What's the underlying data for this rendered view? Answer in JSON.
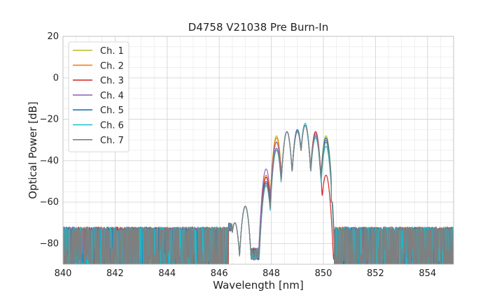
{
  "chart_data": {
    "type": "line",
    "title": "D4758 V21038 Pre Burn-In",
    "xlabel": "Wavelength [nm]",
    "ylabel": "Optical Power [dB]",
    "xlim": [
      840,
      855
    ],
    "ylim": [
      -90,
      20
    ],
    "xticks": [
      840,
      842,
      844,
      846,
      848,
      850,
      852,
      854
    ],
    "yticks": [
      20,
      0,
      -20,
      -40,
      -60,
      -80
    ],
    "grid": true,
    "legend_position": "top-left",
    "series": [
      {
        "name": "Ch. 1",
        "color": "#bcbd22",
        "peaks": [
          [
            846.6,
            -70
          ],
          [
            847.0,
            -62
          ],
          [
            847.8,
            -52
          ],
          [
            848.2,
            -28
          ],
          [
            848.6,
            -26
          ],
          [
            849.0,
            -26
          ],
          [
            849.3,
            -23
          ],
          [
            849.7,
            -27
          ],
          [
            850.1,
            -28
          ]
        ],
        "noise_floor": -82
      },
      {
        "name": "Ch. 2",
        "color": "#ff7f0e",
        "peaks": [
          [
            846.6,
            -70
          ],
          [
            847.0,
            -62
          ],
          [
            847.8,
            -47
          ],
          [
            848.2,
            -29
          ],
          [
            848.6,
            -26
          ],
          [
            849.0,
            -26
          ],
          [
            849.3,
            -23
          ],
          [
            849.7,
            -26
          ],
          [
            850.1,
            -31
          ]
        ],
        "noise_floor": -82
      },
      {
        "name": "Ch. 3",
        "color": "#d62728",
        "peaks": [
          [
            846.6,
            -70
          ],
          [
            847.0,
            -62
          ],
          [
            847.8,
            -48
          ],
          [
            848.2,
            -31
          ],
          [
            848.6,
            -26
          ],
          [
            849.0,
            -25
          ],
          [
            849.3,
            -23
          ],
          [
            849.7,
            -26
          ],
          [
            850.1,
            -47
          ]
        ],
        "noise_floor": -82
      },
      {
        "name": "Ch. 4",
        "color": "#9467bd",
        "peaks": [
          [
            846.6,
            -70
          ],
          [
            847.0,
            -62
          ],
          [
            847.8,
            -44
          ],
          [
            848.2,
            -31
          ],
          [
            848.6,
            -26
          ],
          [
            849.0,
            -25
          ],
          [
            849.3,
            -23
          ],
          [
            849.7,
            -27
          ],
          [
            850.1,
            -30
          ]
        ],
        "noise_floor": -82
      },
      {
        "name": "Ch. 5",
        "color": "#1f77b4",
        "peaks": [
          [
            846.6,
            -70
          ],
          [
            847.0,
            -62
          ],
          [
            847.8,
            -50
          ],
          [
            848.2,
            -34
          ],
          [
            848.6,
            -26
          ],
          [
            849.0,
            -25
          ],
          [
            849.3,
            -23
          ],
          [
            849.7,
            -28
          ],
          [
            850.1,
            -29
          ]
        ],
        "noise_floor": -82
      },
      {
        "name": "Ch. 6",
        "color": "#17becf",
        "peaks": [
          [
            846.6,
            -70
          ],
          [
            847.0,
            -62
          ],
          [
            847.8,
            -52
          ],
          [
            848.2,
            -35
          ],
          [
            848.6,
            -26
          ],
          [
            849.0,
            -26
          ],
          [
            849.3,
            -22
          ],
          [
            849.7,
            -29
          ],
          [
            850.1,
            -33
          ]
        ],
        "noise_floor": -82
      },
      {
        "name": "Ch. 7",
        "color": "#7f7f7f",
        "peaks": [
          [
            846.6,
            -70
          ],
          [
            847.0,
            -62
          ],
          [
            847.8,
            -51
          ],
          [
            848.2,
            -34
          ],
          [
            848.6,
            -26
          ],
          [
            849.0,
            -26
          ],
          [
            849.3,
            -23
          ],
          [
            849.7,
            -28
          ],
          [
            850.1,
            -31
          ]
        ],
        "noise_floor": -82
      }
    ]
  }
}
